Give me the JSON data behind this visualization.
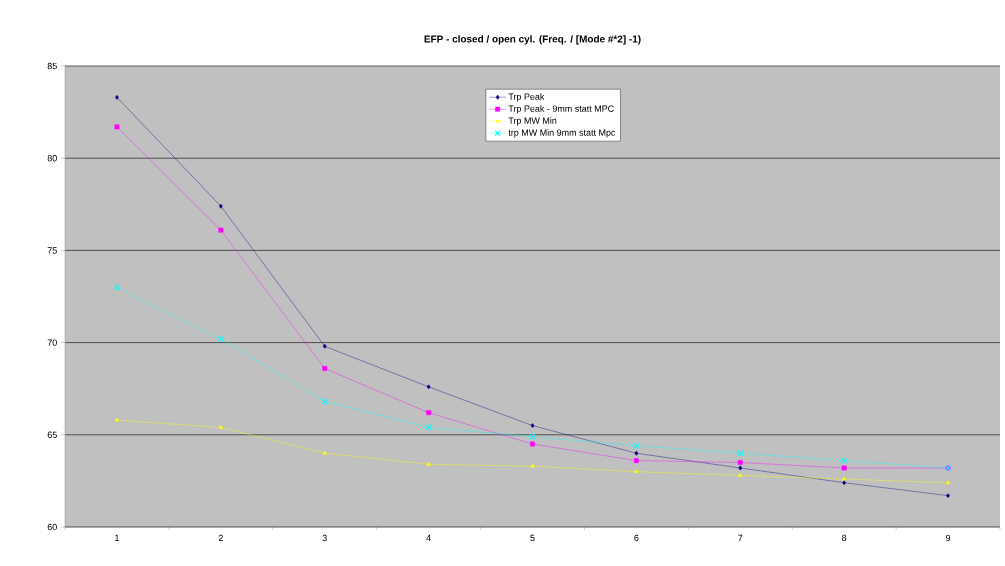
{
  "chart_data": {
    "type": "line",
    "title": "EFP - closed / open cyl.  (Freq. /   [Mode #*2] -1)",
    "categories": [
      "1",
      "2",
      "3",
      "4",
      "5",
      "6",
      "7",
      "8",
      "9"
    ],
    "series": [
      {
        "name": "Trp Peak",
        "color": "#000080",
        "marker": "diamond",
        "values": [
          83.3,
          77.4,
          69.8,
          67.6,
          65.5,
          64.0,
          63.2,
          62.4,
          61.7
        ]
      },
      {
        "name": "Trp Peak - 9mm statt MPC",
        "color": "#ff00ff",
        "marker": "square",
        "values": [
          81.7,
          76.1,
          68.6,
          66.2,
          64.5,
          63.6,
          63.5,
          63.2,
          63.2
        ]
      },
      {
        "name": "Trp MW Min",
        "color": "#ffff00",
        "marker": "triangle",
        "values": [
          65.8,
          65.4,
          64.0,
          63.4,
          63.3,
          63.0,
          62.8,
          62.6,
          62.4
        ]
      },
      {
        "name": "trp MW Min 9mm statt Mpc",
        "color": "#00ffff",
        "marker": "cross",
        "values": [
          73.0,
          70.2,
          66.8,
          65.4,
          64.9,
          64.4,
          64.0,
          63.6,
          63.2
        ]
      }
    ],
    "ylim": [
      60,
      85
    ],
    "yticks": [
      60,
      65,
      70,
      75,
      80,
      85
    ],
    "grid": "y",
    "legend": "top right",
    "line_style": "solid"
  }
}
